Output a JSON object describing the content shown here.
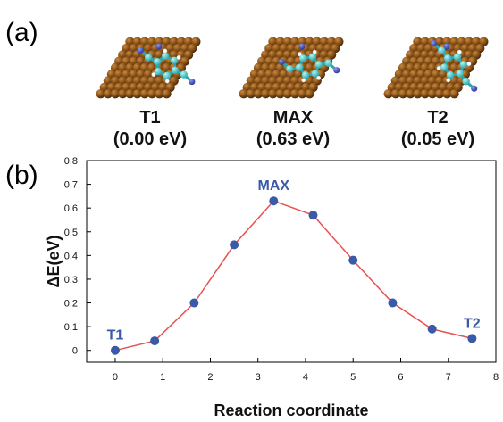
{
  "panels": {
    "a_label": "(a)",
    "b_label": "(b)"
  },
  "structures": [
    {
      "name": "T1",
      "energy": "(0.00 eV)"
    },
    {
      "name": "MAX",
      "energy": "(0.63 eV)"
    },
    {
      "name": "T2",
      "energy": "(0.05 eV)"
    }
  ],
  "colors": {
    "line": "#e8504f",
    "marker": "#3a5aa8",
    "annotation": "#3a5aa8",
    "slab": "#8a5218",
    "carbon": "#3ec4c8",
    "nitrogen": "#3b4fc8",
    "hydrogen": "#ffffff"
  },
  "chart_data": {
    "type": "line",
    "title": "",
    "xlabel": "Reaction coordinate",
    "ylabel": "ΔE(eV)",
    "xlim": [
      -0.6,
      8
    ],
    "ylim": [
      -0.05,
      0.8
    ],
    "xticks": [
      0,
      1,
      2,
      3,
      4,
      5,
      6,
      7,
      8
    ],
    "yticks": [
      0,
      0.1,
      0.2,
      0.3,
      0.4,
      0.5,
      0.6,
      0.7,
      0.8
    ],
    "grid": false,
    "series": [
      {
        "x": [
          0,
          0.83,
          1.66,
          2.5,
          3.33,
          4.16,
          5.0,
          5.83,
          6.66,
          7.5
        ],
        "y": [
          0.0,
          0.04,
          0.2,
          0.445,
          0.63,
          0.57,
          0.38,
          0.2,
          0.09,
          0.05
        ]
      }
    ],
    "annotations": [
      {
        "text": "T1",
        "x": 0,
        "y": 0.0
      },
      {
        "text": "MAX",
        "x": 3.33,
        "y": 0.63
      },
      {
        "text": "T2",
        "x": 7.5,
        "y": 0.05
      }
    ]
  }
}
